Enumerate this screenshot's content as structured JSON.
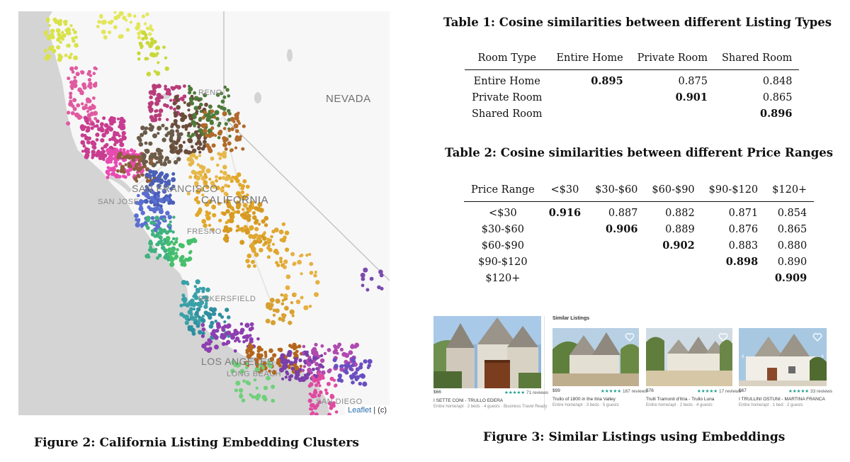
{
  "figure2": {
    "caption": "Figure 2: California Listing Embedding Clusters",
    "map_labels": {
      "nevada": "NEVADA",
      "california": "CALIFORNIA",
      "san_francisco": "SAN FRANCISCO",
      "san_jose": "SAN JOSE",
      "reno": "RENO",
      "fresno": "FRESNO",
      "bakersfield": "BAKERSFIELD",
      "los_angeles": "LOS ANGELES",
      "long_beach": "LONG BEACH",
      "san_diego": "SAN DIEGO"
    },
    "attribution": {
      "link": "Leaflet",
      "text": " | (c)"
    }
  },
  "table1": {
    "caption": "Table 1: Cosine similarities between different Listing Types",
    "headers": [
      "Room Type",
      "Entire Home",
      "Private Room",
      "Shared Room"
    ],
    "rows": [
      {
        "label": "Entire Home",
        "cells": [
          "0.895",
          "0.875",
          "0.848"
        ],
        "bold": 0
      },
      {
        "label": "Private Room",
        "cells": [
          "",
          "0.901",
          "0.865"
        ],
        "bold": 1
      },
      {
        "label": "Shared Room",
        "cells": [
          "",
          "",
          "0.896"
        ],
        "bold": 2
      }
    ]
  },
  "table2": {
    "caption": "Table 2: Cosine similarities between different Price Ranges",
    "headers": [
      "Price Range",
      "<$30",
      "$30-$60",
      "$60-$90",
      "$90-$120",
      "$120+"
    ],
    "rows": [
      {
        "label": "<$30",
        "cells": [
          "0.916",
          "0.887",
          "0.882",
          "0.871",
          "0.854"
        ],
        "bold": 0
      },
      {
        "label": "$30-$60",
        "cells": [
          "",
          "0.906",
          "0.889",
          "0.876",
          "0.865"
        ],
        "bold": 1
      },
      {
        "label": "$60-$90",
        "cells": [
          "",
          "",
          "0.902",
          "0.883",
          "0.880"
        ],
        "bold": 2
      },
      {
        "label": "$90-$120",
        "cells": [
          "",
          "",
          "",
          "0.898",
          "0.890"
        ],
        "bold": 3
      },
      {
        "label": "$120+",
        "cells": [
          "",
          "",
          "",
          "",
          "0.909"
        ],
        "bold": 4
      }
    ]
  },
  "figure3": {
    "caption": "Figure 3: Similar Listings using Embeddings",
    "similar_label": "Similar Listings",
    "listings": [
      {
        "price": "$66",
        "stars": "★★★★★",
        "reviews": "71 reviews",
        "title": "I SETTE CONI - TRULLO EDERA",
        "meta": "Entire home/apt · 2 beds · 4 guests · Business Travel Ready"
      },
      {
        "price": "$99",
        "stars": "★★★★★",
        "reviews": "167 reviews",
        "title": "Trullo of 1800 in the Itria Valley",
        "meta": "Entire home/apt · 3 beds · 5 guests"
      },
      {
        "price": "$76",
        "stars": "★★★★★",
        "reviews": "17 reviews",
        "title": "Trulli Tramonti d'Itria - Trullo Luna",
        "meta": "Entire home/apt · 2 beds · 4 guests"
      },
      {
        "price": "$67",
        "stars": "★★★★★",
        "reviews": "33 reviews",
        "title": "I TRULLINI OSTUNI - MARTINA FRANCA",
        "meta": "Entire home/apt · 1 bed · 2 guests"
      }
    ]
  }
}
